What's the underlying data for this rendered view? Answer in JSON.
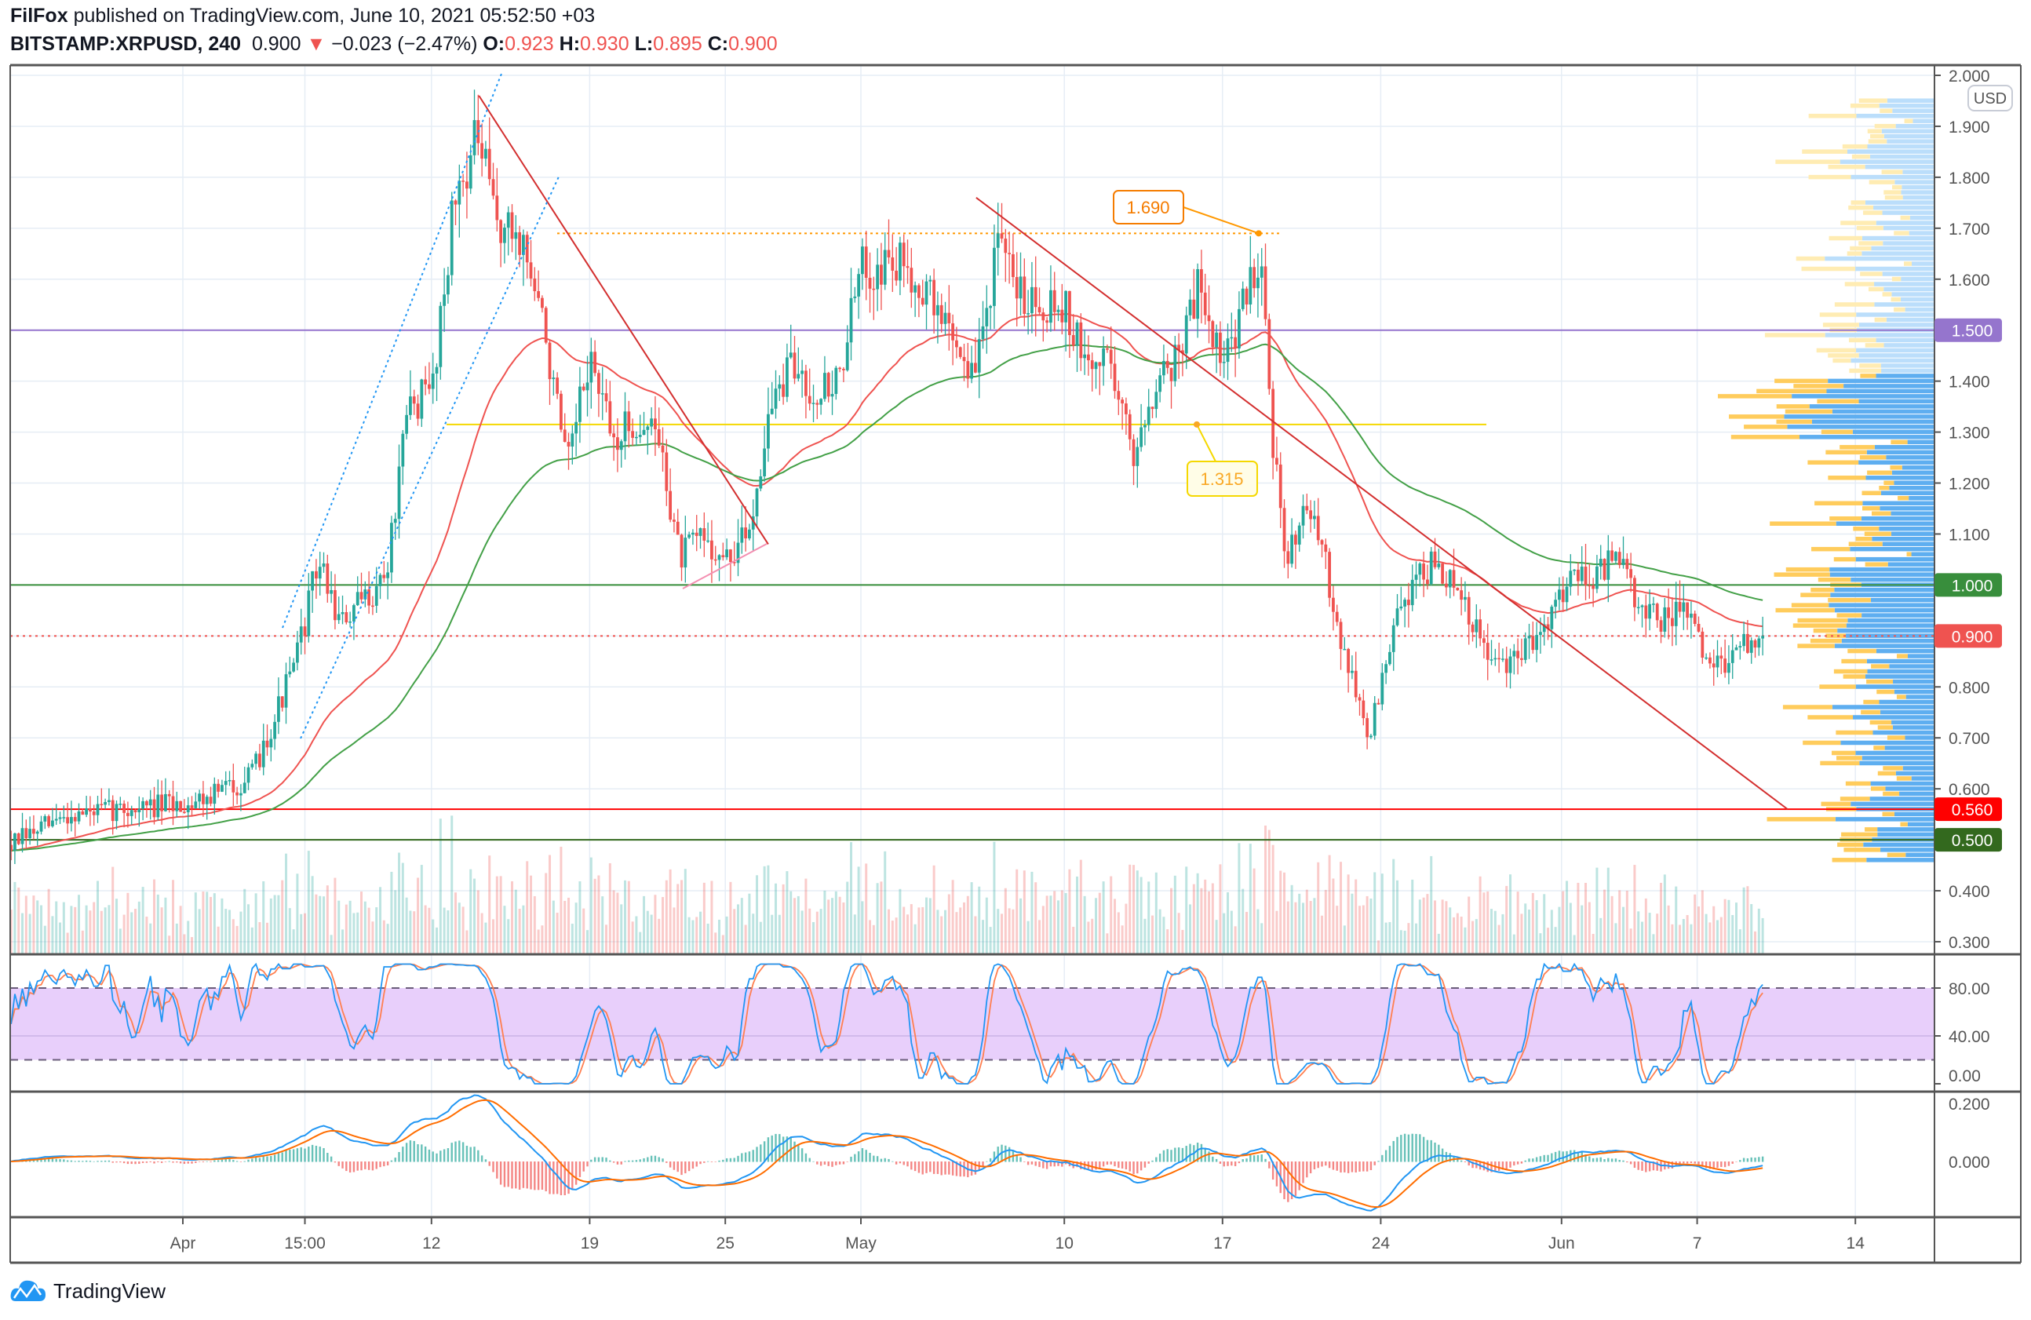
{
  "header": {
    "author": "FilFox",
    "published": "published on TradingView.com, June 10, 2021 05:52:50 +03",
    "symbol": "BITSTAMP:XRPUSD, 240",
    "last": "0.900",
    "change": "−0.023 (−2.47%)",
    "o_label": "O:",
    "o": "0.923",
    "h_label": "H:",
    "h": "0.930",
    "l_label": "L:",
    "l": "0.895",
    "c_label": "C:",
    "c": "0.900"
  },
  "currency": "USD",
  "brand": "TradingView",
  "colors": {
    "up": "#26a69a",
    "down": "#ef5350",
    "ma_fast": "#ef5350",
    "ma_slow": "#43a047",
    "purple": "#9575cd",
    "green": "#388e3c",
    "red": "#ff0000",
    "dark_green": "#33691e",
    "yellow": "#f5d800",
    "orange": "#ff9800",
    "blue": "#2196f3"
  },
  "chart_data": {
    "type": "candlestick",
    "symbol": "XRPUSD",
    "interval": "240",
    "ylim": [
      0.28,
      2.02
    ],
    "price_ticks": [
      "2.000",
      "1.900",
      "1.800",
      "1.700",
      "1.600",
      "1.500",
      "1.400",
      "1.300",
      "1.200",
      "1.100",
      "1.000",
      "0.900",
      "0.800",
      "0.700",
      "0.600",
      "0.560",
      "0.500",
      "0.400",
      "0.300"
    ],
    "time_ticks": [
      {
        "label": "Apr",
        "day": 0
      },
      {
        "label": "15:00",
        "day": 5.4
      },
      {
        "label": "12",
        "day": 11
      },
      {
        "label": "19",
        "day": 18
      },
      {
        "label": "25",
        "day": 24
      },
      {
        "label": "May",
        "day": 30
      },
      {
        "label": "10",
        "day": 39
      },
      {
        "label": "17",
        "day": 46
      },
      {
        "label": "24",
        "day": 53
      },
      {
        "label": "Jun",
        "day": 61
      },
      {
        "label": "7",
        "day": 67
      },
      {
        "label": "14",
        "day": 74
      }
    ],
    "price_path_day_vs_close": [
      [
        -7.6,
        0.49
      ],
      [
        -5,
        0.55
      ],
      [
        0,
        0.57
      ],
      [
        3,
        0.62
      ],
      [
        5,
        0.85
      ],
      [
        6,
        1.05
      ],
      [
        7,
        0.92
      ],
      [
        9,
        1.02
      ],
      [
        10,
        1.35
      ],
      [
        11,
        1.38
      ],
      [
        12,
        1.75
      ],
      [
        13,
        1.88
      ],
      [
        14,
        1.7
      ],
      [
        15,
        1.68
      ],
      [
        16,
        1.5
      ],
      [
        17,
        1.22
      ],
      [
        18,
        1.45
      ],
      [
        19,
        1.28
      ],
      [
        20,
        1.32
      ],
      [
        21,
        1.3
      ],
      [
        22,
        1.05
      ],
      [
        23,
        1.1
      ],
      [
        24,
        1.04
      ],
      [
        25,
        1.1
      ],
      [
        26,
        1.35
      ],
      [
        27,
        1.43
      ],
      [
        28,
        1.38
      ],
      [
        29,
        1.4
      ],
      [
        30,
        1.62
      ],
      [
        32,
        1.63
      ],
      [
        34,
        1.5
      ],
      [
        35,
        1.4
      ],
      [
        36,
        1.66
      ],
      [
        37,
        1.58
      ],
      [
        38,
        1.56
      ],
      [
        39,
        1.55
      ],
      [
        40,
        1.42
      ],
      [
        41,
        1.46
      ],
      [
        42,
        1.25
      ],
      [
        43,
        1.4
      ],
      [
        44,
        1.45
      ],
      [
        45,
        1.6
      ],
      [
        46,
        1.42
      ],
      [
        47,
        1.56
      ],
      [
        47.7,
        1.66
      ],
      [
        48.2,
        1.3
      ],
      [
        48.8,
        1.02
      ],
      [
        49.5,
        1.17
      ],
      [
        50.5,
        1.05
      ],
      [
        51.5,
        0.85
      ],
      [
        52.5,
        0.7
      ],
      [
        53.5,
        0.9
      ],
      [
        54.5,
        1.02
      ],
      [
        55.5,
        1.04
      ],
      [
        56.5,
        0.97
      ],
      [
        57.5,
        0.88
      ],
      [
        58.5,
        0.83
      ],
      [
        59.5,
        0.88
      ],
      [
        60.5,
        0.95
      ],
      [
        61.5,
        1.03
      ],
      [
        62.5,
        1.02
      ],
      [
        63.5,
        1.05
      ],
      [
        64.5,
        0.95
      ],
      [
        65.5,
        0.93
      ],
      [
        66.5,
        0.95
      ],
      [
        67.5,
        0.84
      ],
      [
        68.5,
        0.86
      ],
      [
        69.9,
        0.9
      ]
    ],
    "levels": [
      {
        "price": 1.5,
        "label": "1.500",
        "color": "#9575cd"
      },
      {
        "price": 1.0,
        "label": "1.000",
        "color": "#388e3c"
      },
      {
        "price": 0.9,
        "label": "0.900",
        "color": "#ef5350"
      },
      {
        "price": 0.56,
        "label": "0.560",
        "color": "#ff0000"
      },
      {
        "price": 0.5,
        "label": "0.500",
        "color": "#33691e"
      }
    ],
    "annotations": [
      {
        "label": "1.690",
        "price": 1.69,
        "day": 47.6
      },
      {
        "label": "1.315",
        "price": 1.315,
        "day": 44.5
      }
    ],
    "trendlines": [
      {
        "from": [
          13.1,
          1.96
        ],
        "to": [
          25.9,
          1.08
        ],
        "color": "#d32f2f"
      },
      {
        "from": [
          35.1,
          1.76
        ],
        "to": [
          71.0,
          0.56
        ],
        "color": "#d32f2f"
      }
    ],
    "rsi_pane": {
      "ticks": [
        "80.00",
        "40.00",
        "0.00"
      ],
      "band": [
        20,
        80
      ]
    },
    "macd_pane": {
      "ticks": [
        "0.200",
        "0.000"
      ]
    }
  }
}
